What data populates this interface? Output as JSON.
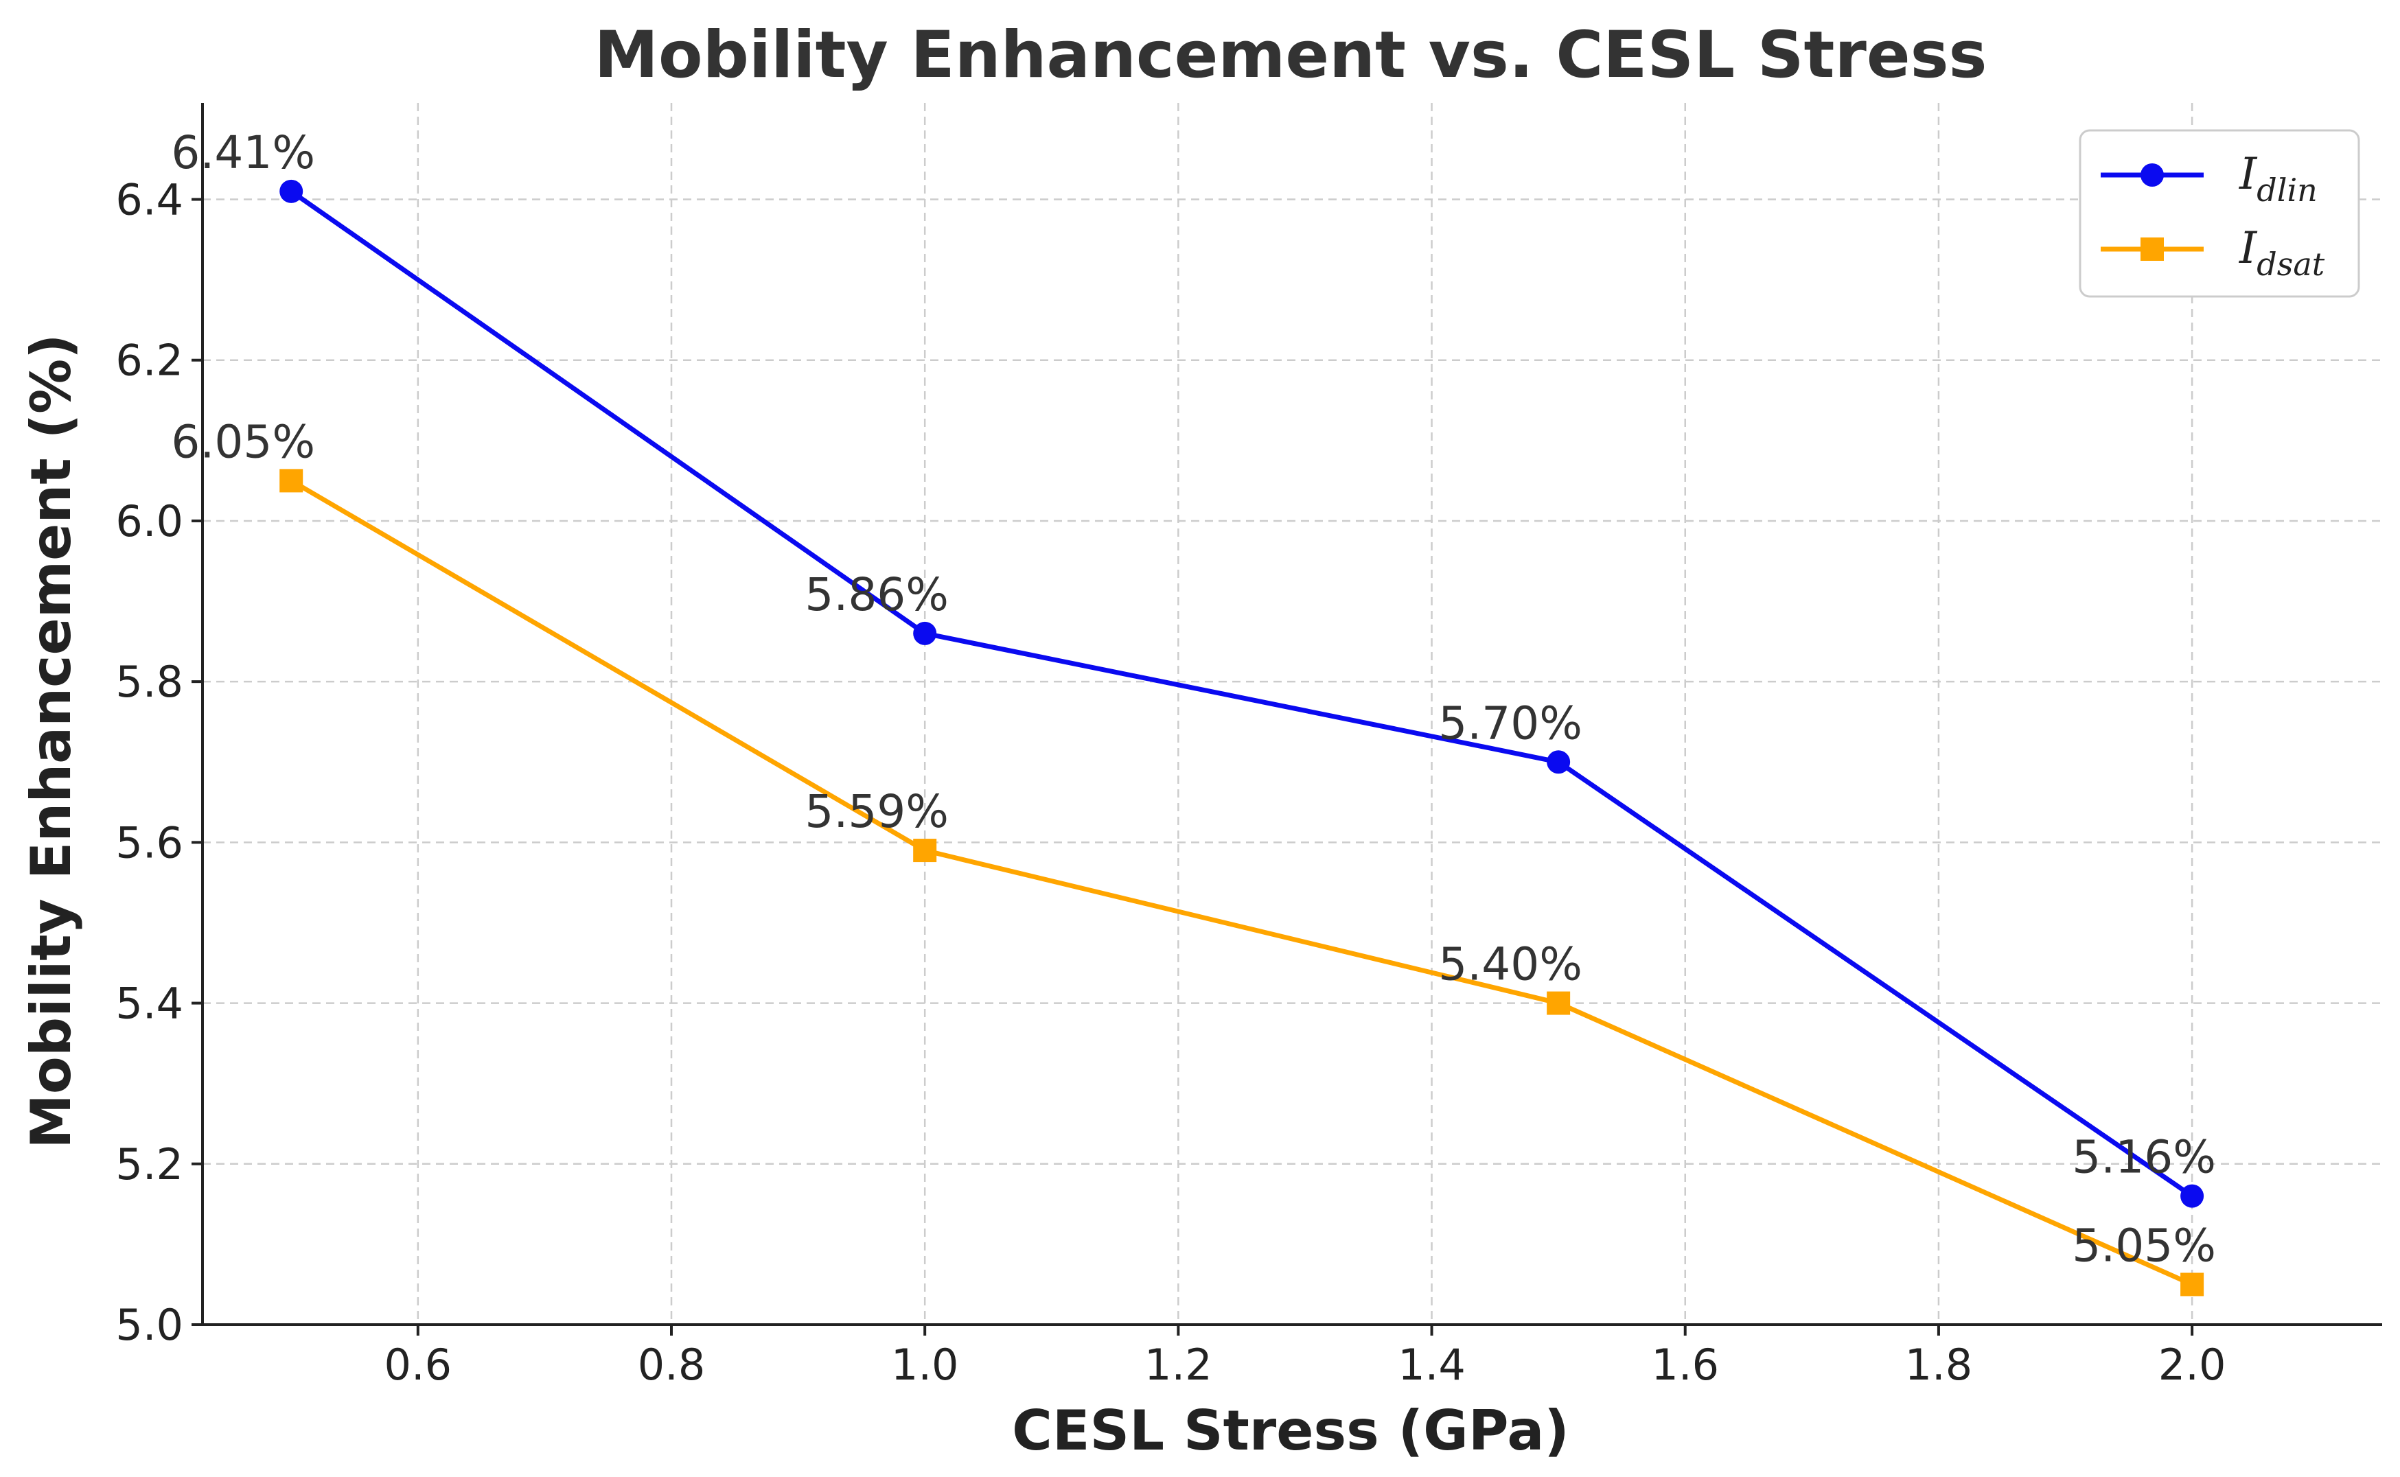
{
  "chart_data": {
    "type": "line",
    "title": "Mobility Enhancement vs. CESL Stress",
    "xlabel": "CESL Stress (GPa)",
    "ylabel": "Mobility Enhancement (%)",
    "xlim": [
      0.43,
      2.15
    ],
    "ylim": [
      5.0,
      6.52
    ],
    "x_ticks": [
      0.6,
      0.8,
      1.0,
      1.2,
      1.4,
      1.6,
      1.8,
      2.0
    ],
    "x_tick_labels": [
      "0.6",
      "0.8",
      "1.0",
      "1.2",
      "1.4",
      "1.6",
      "1.8",
      "2.0"
    ],
    "y_ticks": [
      5.0,
      5.2,
      5.4,
      5.6,
      5.8,
      6.0,
      6.2,
      6.4
    ],
    "y_tick_labels": [
      "5.0",
      "5.2",
      "5.4",
      "5.6",
      "5.8",
      "6.0",
      "6.2",
      "6.4"
    ],
    "grid": true,
    "legend_position": "top-right",
    "x": [
      0.5,
      1.0,
      1.5,
      2.0
    ],
    "series": [
      {
        "name": "I_dlin",
        "legend_main": "I",
        "legend_sub": "dlin",
        "color": "#0a0af0",
        "marker": "circle",
        "values": [
          6.41,
          5.86,
          5.7,
          5.16
        ],
        "labels": [
          "6.41%",
          "5.86%",
          "5.70%",
          "5.16%"
        ]
      },
      {
        "name": "I_dsat",
        "legend_main": "I",
        "legend_sub": "dsat",
        "color": "#ffa500",
        "marker": "square",
        "values": [
          6.05,
          5.59,
          5.4,
          5.05
        ],
        "labels": [
          "6.05%",
          "5.59%",
          "5.40%",
          "5.05%"
        ]
      }
    ]
  }
}
